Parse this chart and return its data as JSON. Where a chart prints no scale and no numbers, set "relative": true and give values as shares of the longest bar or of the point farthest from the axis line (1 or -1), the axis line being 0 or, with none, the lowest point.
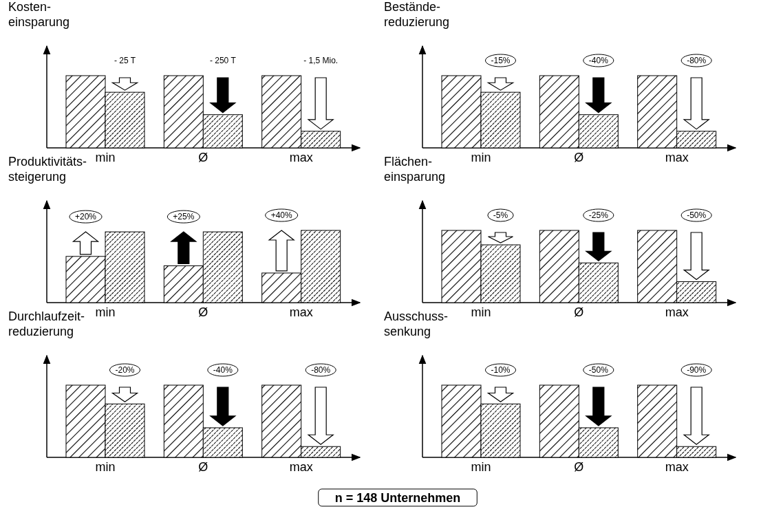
{
  "chart_data": [
    {
      "type": "bar",
      "title": "Kosten-\neinsparung",
      "categories": [
        "min",
        "Ø",
        "max"
      ],
      "relative": true,
      "series": [
        {
          "color": "#000000",
          "values": [
            1,
            1,
            1
          ]
        },
        {
          "color": "#000000",
          "values": [
            0.77,
            0.46,
            0.23
          ]
        }
      ],
      "annotations": [
        "- 25 T",
        "- 250 T",
        "- 1,5 Mio."
      ]
    },
    {
      "type": "bar",
      "title": "Bestände-\nreduzierung",
      "categories": [
        "min",
        "Ø",
        "max"
      ],
      "relative": true,
      "series": [
        {
          "color": "#000000",
          "values": [
            1,
            1,
            1
          ]
        },
        {
          "color": "#000000",
          "values": [
            0.77,
            0.46,
            0.23
          ]
        }
      ],
      "annotations": [
        "-15%",
        "-40%",
        "-80%"
      ]
    },
    {
      "type": "bar",
      "title": "Produktivitäts-\nsteigerung",
      "categories": [
        "min",
        "Ø",
        "max"
      ],
      "relative": true,
      "series": [
        {
          "color": "#000000",
          "values": [
            0.64,
            0.51,
            0.41
          ]
        },
        {
          "color": "#000000",
          "values": [
            0.98,
            0.98,
            1
          ]
        }
      ],
      "annotations": [
        "+20%",
        "+25%",
        "+40%"
      ]
    },
    {
      "type": "bar",
      "title": "Flächen-\neinsparung",
      "categories": [
        "min",
        "Ø",
        "max"
      ],
      "relative": true,
      "series": [
        {
          "color": "#000000",
          "values": [
            1,
            1,
            1
          ]
        },
        {
          "color": "#000000",
          "values": [
            0.8,
            0.55,
            0.29
          ]
        }
      ],
      "annotations": [
        "-5%",
        "-25%",
        "-50%"
      ]
    },
    {
      "type": "bar",
      "title": "Durchlaufzeit-\nreduzierung",
      "categories": [
        "min",
        "Ø",
        "max"
      ],
      "relative": true,
      "series": [
        {
          "color": "#000000",
          "values": [
            1,
            1,
            1
          ]
        },
        {
          "color": "#000000",
          "values": [
            0.74,
            0.41,
            0.15
          ]
        }
      ],
      "annotations": [
        "-20%",
        "-40%",
        "-80%"
      ]
    },
    {
      "type": "bar",
      "title": "Ausschuss-\nsenkung",
      "categories": [
        "min",
        "Ø",
        "max"
      ],
      "relative": true,
      "series": [
        {
          "color": "#000000",
          "values": [
            1,
            1,
            1
          ]
        },
        {
          "color": "#000000",
          "values": [
            0.74,
            0.41,
            0.15
          ]
        }
      ],
      "annotations": [
        "-10%",
        "-50%",
        "-90%"
      ]
    },
    {
      "type": "other",
      "annotations": [
        "n = 148 Unternehmen"
      ]
    }
  ]
}
